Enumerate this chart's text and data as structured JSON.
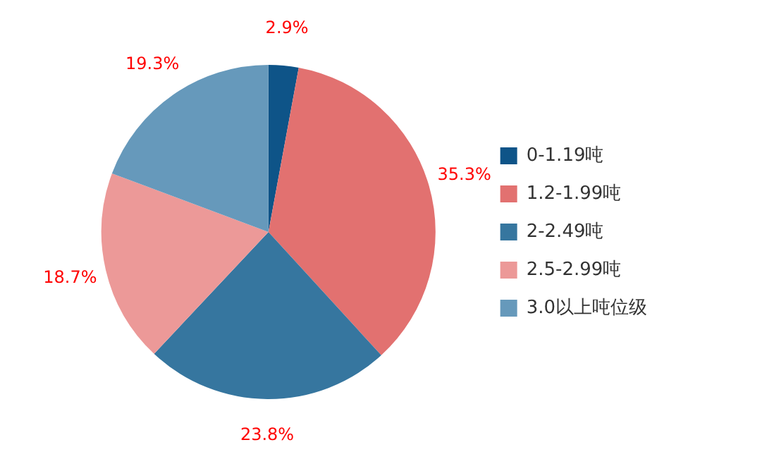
{
  "chart_data": {
    "type": "pie",
    "categories": [
      "0-1.19吨",
      "1.2-1.99吨",
      "2-2.49吨",
      "2.5-2.99吨",
      "3.0以上吨位级"
    ],
    "values": [
      2.9,
      35.3,
      23.8,
      18.7,
      19.3
    ],
    "colors": [
      "#0e5488",
      "#e27170",
      "#36769f",
      "#ec9998",
      "#6699bb"
    ],
    "value_labels": [
      "2.9%",
      "35.3%",
      "23.8%",
      "18.7%",
      "19.3%"
    ],
    "legend": "right"
  }
}
